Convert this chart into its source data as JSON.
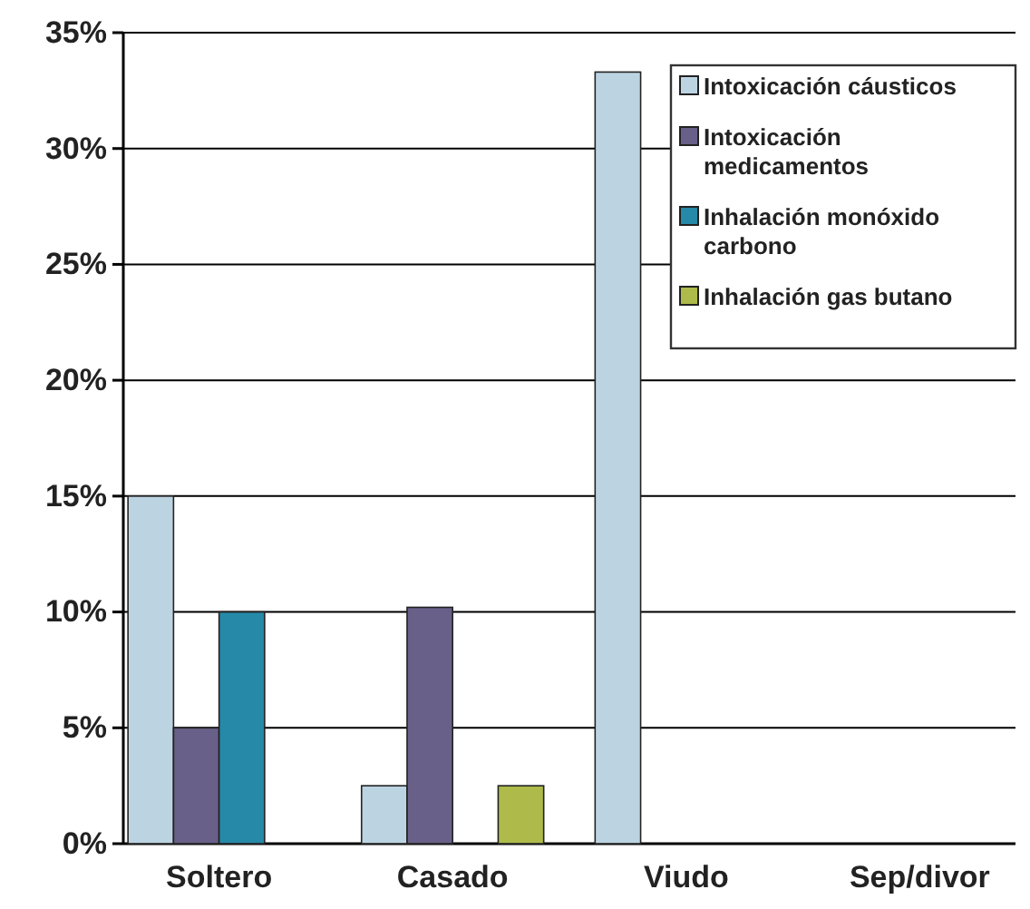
{
  "chart_data": {
    "type": "bar",
    "categories": [
      "Soltero",
      "Casado",
      "Viudo",
      "Sep/divor"
    ],
    "series": [
      {
        "name": "Intoxicación cáusticos",
        "color": "#bcd4e2",
        "values": [
          15,
          2.5,
          33.3,
          0
        ]
      },
      {
        "name": "Intoxicación medicamentos",
        "color": "#686088",
        "values": [
          5,
          10.2,
          0,
          0
        ]
      },
      {
        "name": "Inhalación monóxido carbono",
        "color": "#2689a8",
        "values": [
          10,
          0,
          0,
          0
        ]
      },
      {
        "name": "Inhalación gas butano",
        "color": "#aebb4a",
        "values": [
          0,
          2.5,
          0,
          0
        ]
      }
    ],
    "ylim": [
      0,
      35
    ],
    "yticks": [
      {
        "value": 0,
        "label": "0%"
      },
      {
        "value": 5,
        "label": "5%"
      },
      {
        "value": 10,
        "label": "10%"
      },
      {
        "value": 15,
        "label": "15%"
      },
      {
        "value": 20,
        "label": "20%"
      },
      {
        "value": 25,
        "label": "25%"
      },
      {
        "value": 30,
        "label": "30%"
      },
      {
        "value": 35,
        "label": "35%"
      }
    ],
    "grid": "y",
    "legend": "top right"
  }
}
